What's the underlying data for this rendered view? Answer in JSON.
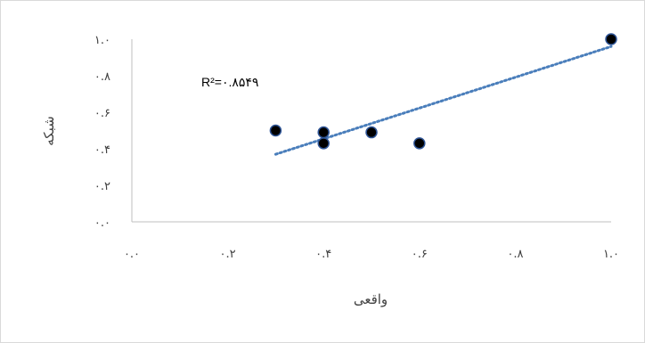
{
  "chart_data": {
    "type": "scatter",
    "title": "",
    "xlabel": "واقعی",
    "ylabel": "شبکه",
    "xlim": [
      0,
      1
    ],
    "ylim": [
      0,
      1
    ],
    "x_ticks": [
      "۰.۰",
      "۰.۲",
      "۰.۴",
      "۰.۶",
      "۰.۸",
      "۱.۰"
    ],
    "y_ticks": [
      "۰.۰",
      "۰.۲",
      "۰.۴",
      "۰.۶",
      "۰.۸",
      "۱.۰"
    ],
    "grid": false,
    "legend": "none",
    "series": [
      {
        "points": [
          {
            "x": 0.3,
            "y": 0.5
          },
          {
            "x": 0.4,
            "y": 0.49
          },
          {
            "x": 0.4,
            "y": 0.43
          },
          {
            "x": 0.5,
            "y": 0.49
          },
          {
            "x": 0.6,
            "y": 0.43
          },
          {
            "x": 1.0,
            "y": 1.0
          }
        ],
        "marker_color": "#000000",
        "marker_edge": "#2f5597"
      }
    ],
    "trendline": {
      "type": "linear",
      "x_start": 0.3,
      "y_start": 0.37,
      "x_end": 1.0,
      "y_end": 0.96,
      "color": "#4a7ebb"
    },
    "annotation": {
      "label": "R²=۰.۸۵۴۹"
    }
  }
}
